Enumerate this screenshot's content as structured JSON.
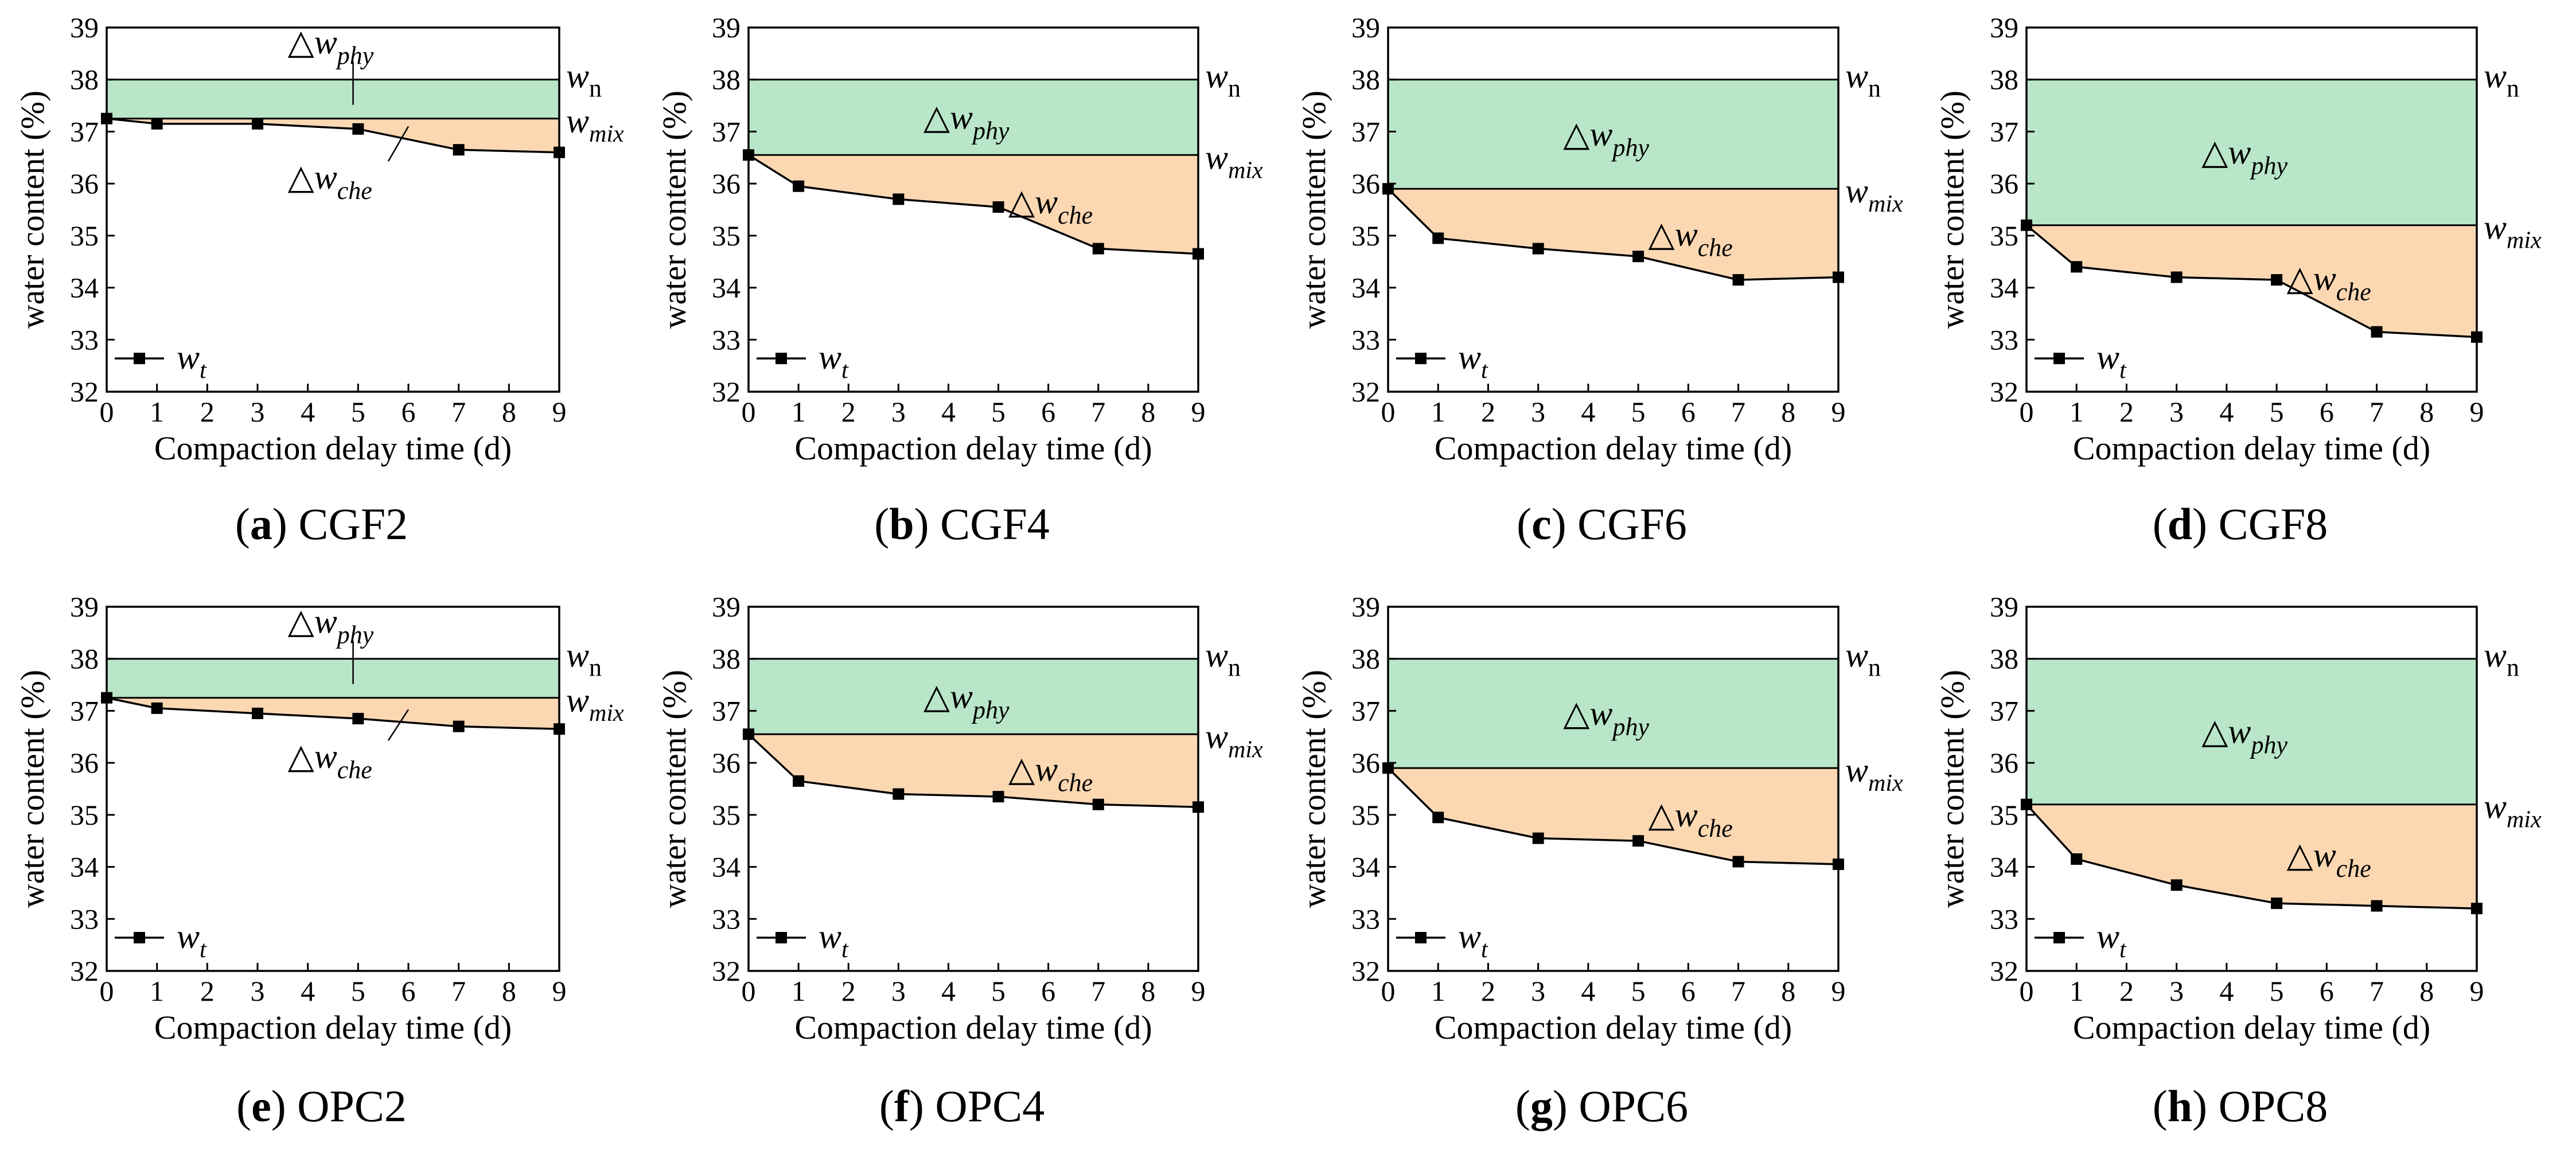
{
  "colors": {
    "phy_fill": "#b9e6c9",
    "che_fill": "#fcd8b2",
    "line": "#000000"
  },
  "labels": {
    "delta_phy": {
      "prefix": "△w",
      "sub": "phy"
    },
    "delta_che": {
      "prefix": "△w",
      "sub": "che"
    },
    "w_n": {
      "main": "w",
      "sub": "n"
    },
    "w_mix": {
      "main": "w",
      "sub": "mix"
    },
    "legend": {
      "main": "w",
      "sub": "t"
    }
  },
  "chart_data": [
    {
      "type": "line",
      "panel": "a",
      "name": "CGF2",
      "caption": {
        "letter": "(a)",
        "name": "CGF2"
      },
      "x": [
        0,
        1,
        3,
        5,
        7,
        9
      ],
      "series": [
        {
          "name": "wt",
          "values": [
            37.25,
            37.15,
            37.15,
            37.05,
            36.65,
            36.6
          ]
        }
      ],
      "w_n": 38.0,
      "w_mix": 37.25,
      "xlabel": "Compaction delay time (d)",
      "ylabel": "water content (%)",
      "xlim": [
        0,
        9
      ],
      "ylim": [
        32,
        39
      ],
      "xticks": [
        0,
        1,
        2,
        3,
        4,
        5,
        6,
        7,
        8,
        9
      ],
      "yticks": [
        32,
        33,
        34,
        35,
        36,
        37,
        38,
        39
      ]
    },
    {
      "type": "line",
      "panel": "b",
      "name": "CGF4",
      "caption": {
        "letter": "(b)",
        "name": "CGF4"
      },
      "x": [
        0,
        1,
        3,
        5,
        7,
        9
      ],
      "series": [
        {
          "name": "wt",
          "values": [
            36.55,
            35.95,
            35.7,
            35.55,
            34.75,
            34.65
          ]
        }
      ],
      "w_n": 38.0,
      "w_mix": 36.55,
      "xlabel": "Compaction delay time (d)",
      "ylabel": "water content (%)",
      "xlim": [
        0,
        9
      ],
      "ylim": [
        32,
        39
      ],
      "xticks": [
        0,
        1,
        2,
        3,
        4,
        5,
        6,
        7,
        8,
        9
      ],
      "yticks": [
        32,
        33,
        34,
        35,
        36,
        37,
        38,
        39
      ]
    },
    {
      "type": "line",
      "panel": "c",
      "name": "CGF6",
      "caption": {
        "letter": "(c)",
        "name": "CGF6"
      },
      "x": [
        0,
        1,
        3,
        5,
        7,
        9
      ],
      "series": [
        {
          "name": "wt",
          "values": [
            35.9,
            34.95,
            34.75,
            34.6,
            34.15,
            34.2
          ]
        }
      ],
      "w_n": 38.0,
      "w_mix": 35.9,
      "xlabel": "Compaction delay time (d)",
      "ylabel": "water content (%)",
      "xlim": [
        0,
        9
      ],
      "ylim": [
        32,
        39
      ],
      "xticks": [
        0,
        1,
        2,
        3,
        4,
        5,
        6,
        7,
        8,
        9
      ],
      "yticks": [
        32,
        33,
        34,
        35,
        36,
        37,
        38,
        39
      ]
    },
    {
      "type": "line",
      "panel": "d",
      "name": "CGF8",
      "caption": {
        "letter": "(d)",
        "name": "CGF8"
      },
      "x": [
        0,
        1,
        3,
        5,
        7,
        9
      ],
      "series": [
        {
          "name": "wt",
          "values": [
            35.2,
            34.4,
            34.2,
            34.15,
            33.15,
            33.05
          ]
        }
      ],
      "w_n": 38.0,
      "w_mix": 35.2,
      "xlabel": "Compaction delay time (d)",
      "ylabel": "water content (%)",
      "xlim": [
        0,
        9
      ],
      "ylim": [
        32,
        39
      ],
      "xticks": [
        0,
        1,
        2,
        3,
        4,
        5,
        6,
        7,
        8,
        9
      ],
      "yticks": [
        32,
        33,
        34,
        35,
        36,
        37,
        38,
        39
      ]
    },
    {
      "type": "line",
      "panel": "e",
      "name": "OPC2",
      "caption": {
        "letter": "(e)",
        "name": "OPC2"
      },
      "x": [
        0,
        1,
        3,
        5,
        7,
        9
      ],
      "series": [
        {
          "name": "wt",
          "values": [
            37.25,
            37.05,
            36.95,
            36.85,
            36.7,
            36.65
          ]
        }
      ],
      "w_n": 38.0,
      "w_mix": 37.25,
      "xlabel": "Compaction delay time (d)",
      "ylabel": "water content (%)",
      "xlim": [
        0,
        9
      ],
      "ylim": [
        32,
        39
      ],
      "xticks": [
        0,
        1,
        2,
        3,
        4,
        5,
        6,
        7,
        8,
        9
      ],
      "yticks": [
        32,
        33,
        34,
        35,
        36,
        37,
        38,
        39
      ]
    },
    {
      "type": "line",
      "panel": "f",
      "name": "OPC4",
      "caption": {
        "letter": "(f)",
        "name": "OPC4"
      },
      "x": [
        0,
        1,
        3,
        5,
        7,
        9
      ],
      "series": [
        {
          "name": "wt",
          "values": [
            36.55,
            35.65,
            35.4,
            35.35,
            35.2,
            35.15
          ]
        }
      ],
      "w_n": 38.0,
      "w_mix": 36.55,
      "xlabel": "Compaction delay time (d)",
      "ylabel": "water content (%)",
      "xlim": [
        0,
        9
      ],
      "ylim": [
        32,
        39
      ],
      "xticks": [
        0,
        1,
        2,
        3,
        4,
        5,
        6,
        7,
        8,
        9
      ],
      "yticks": [
        32,
        33,
        34,
        35,
        36,
        37,
        38,
        39
      ]
    },
    {
      "type": "line",
      "panel": "g",
      "name": "OPC6",
      "caption": {
        "letter": "(g)",
        "name": "OPC6"
      },
      "x": [
        0,
        1,
        3,
        5,
        7,
        9
      ],
      "series": [
        {
          "name": "wt",
          "values": [
            35.9,
            34.95,
            34.55,
            34.5,
            34.1,
            34.05
          ]
        }
      ],
      "w_n": 38.0,
      "w_mix": 35.9,
      "xlabel": "Compaction delay time (d)",
      "ylabel": "water content (%)",
      "xlim": [
        0,
        9
      ],
      "ylim": [
        32,
        39
      ],
      "xticks": [
        0,
        1,
        2,
        3,
        4,
        5,
        6,
        7,
        8,
        9
      ],
      "yticks": [
        32,
        33,
        34,
        35,
        36,
        37,
        38,
        39
      ]
    },
    {
      "type": "line",
      "panel": "h",
      "name": "OPC8",
      "caption": {
        "letter": "(h)",
        "name": "OPC8"
      },
      "x": [
        0,
        1,
        3,
        5,
        7,
        9
      ],
      "series": [
        {
          "name": "wt",
          "values": [
            35.2,
            34.15,
            33.65,
            33.3,
            33.25,
            33.2
          ]
        }
      ],
      "w_n": 38.0,
      "w_mix": 35.2,
      "xlabel": "Compaction delay time (d)",
      "ylabel": "water content (%)",
      "xlim": [
        0,
        9
      ],
      "ylim": [
        32,
        39
      ],
      "xticks": [
        0,
        1,
        2,
        3,
        4,
        5,
        6,
        7,
        8,
        9
      ],
      "yticks": [
        32,
        33,
        34,
        35,
        36,
        37,
        38,
        39
      ]
    }
  ]
}
